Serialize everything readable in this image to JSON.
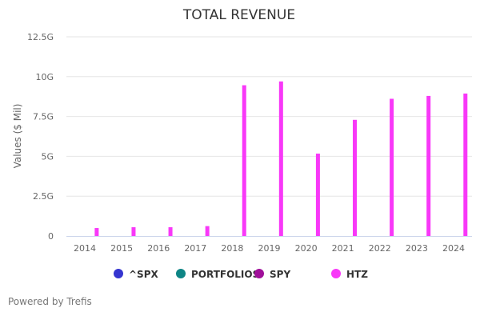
{
  "chart_data": {
    "type": "bar",
    "title": "TOTAL REVENUE",
    "xlabel": "",
    "ylabel": "Values ($ Mil)",
    "ylim": [
      0,
      12.5
    ],
    "y_unit_suffix": "G",
    "y_ticks": [
      {
        "value": 0,
        "label": "0"
      },
      {
        "value": 2.5,
        "label": "2.5G"
      },
      {
        "value": 5,
        "label": "5G"
      },
      {
        "value": 7.5,
        "label": "7.5G"
      },
      {
        "value": 10,
        "label": "10G"
      },
      {
        "value": 12.5,
        "label": "12.5G"
      }
    ],
    "grid": true,
    "categories": [
      "2014",
      "2015",
      "2016",
      "2017",
      "2018",
      "2019",
      "2020",
      "2021",
      "2022",
      "2023",
      "2024"
    ],
    "series": [
      {
        "name": "^SPX",
        "color": "#3535d0",
        "values": []
      },
      {
        "name": "PORTFOLIOS",
        "color": "#0e8585",
        "values": []
      },
      {
        "name": "SPY",
        "color": "#a0109a",
        "values": []
      },
      {
        "name": "HTZ",
        "color": "#f838f8",
        "values": [
          0.5,
          0.55,
          0.55,
          0.62,
          9.46,
          9.7,
          5.17,
          7.29,
          8.61,
          8.79,
          8.94
        ]
      }
    ],
    "legend_position": "bottom"
  },
  "credit": "Powered by Trefis"
}
